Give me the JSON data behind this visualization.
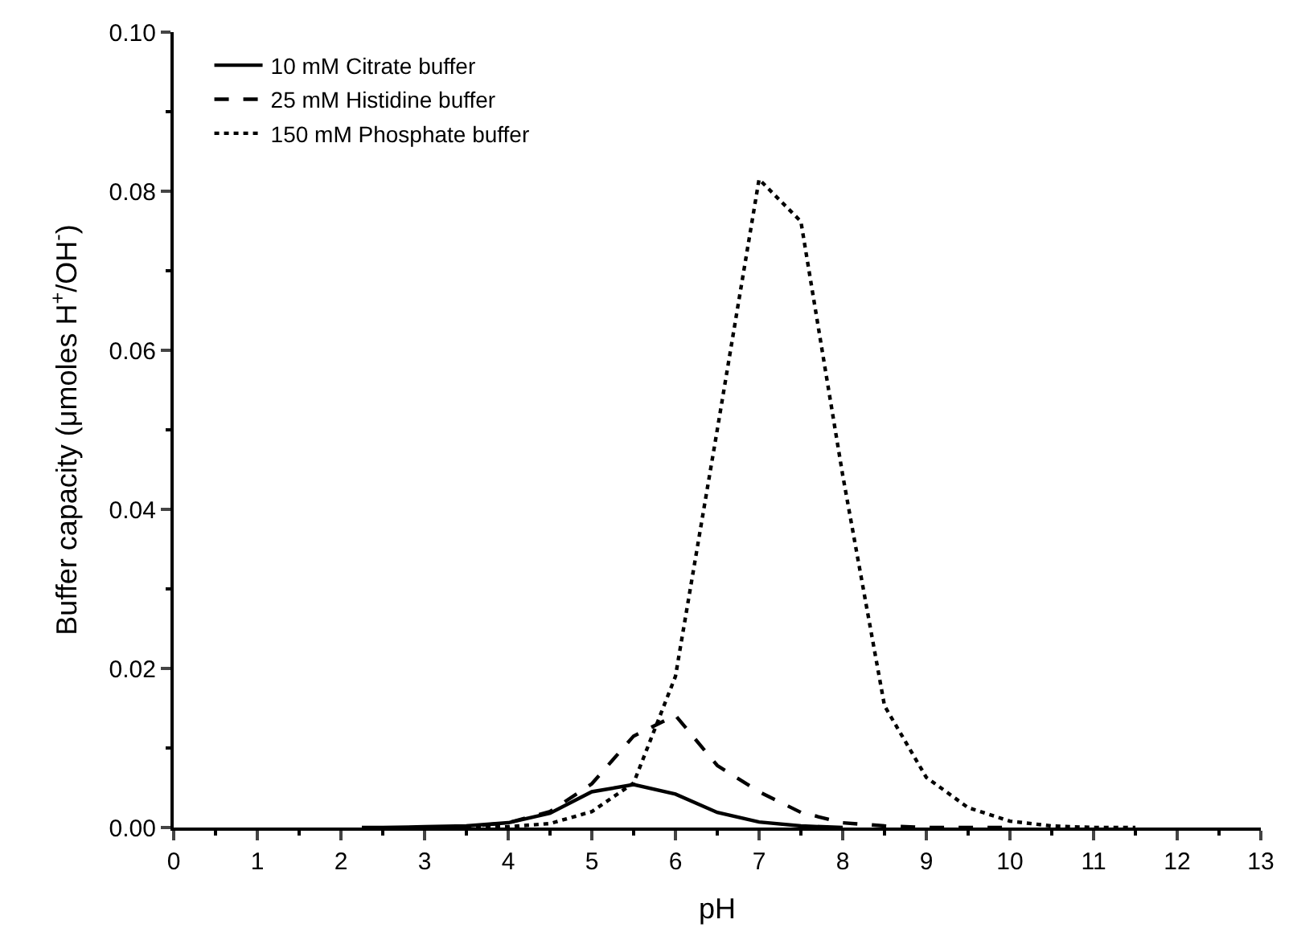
{
  "chart_data": {
    "type": "line",
    "xlabel": "pH",
    "ylabel": "Buffer capacity (μmoles H$^{+}$/OH$^{-}$)",
    "xlim": [
      0,
      13
    ],
    "ylim": [
      0,
      0.1
    ],
    "xticks": [
      0,
      {
        "value": 0.5,
        "label": null
      },
      1,
      {
        "value": 1.5,
        "label": null
      },
      2,
      {
        "value": 2.5,
        "label": null
      },
      3,
      {
        "value": 3.5,
        "label": null
      },
      4,
      {
        "value": 4.5,
        "label": null
      },
      5,
      {
        "value": 5.5,
        "label": null
      },
      6,
      {
        "value": 6.5,
        "label": null
      },
      7,
      {
        "value": 7.5,
        "label": null
      },
      8,
      {
        "value": 8.5,
        "label": null
      },
      9,
      {
        "value": 9.5,
        "label": null
      },
      10,
      {
        "value": 10.5,
        "label": null
      },
      11,
      {
        "value": 11.5,
        "label": null
      },
      12,
      {
        "value": 12.5,
        "label": null
      },
      13
    ],
    "yticks": [
      {
        "value": 0,
        "label": "0.00"
      },
      {
        "value": 0.01,
        "label": null
      },
      {
        "value": 0.02,
        "label": "0.02"
      },
      {
        "value": 0.03,
        "label": null
      },
      {
        "value": 0.04,
        "label": "0.04"
      },
      {
        "value": 0.05,
        "label": null
      },
      {
        "value": 0.06,
        "label": "0.06"
      },
      {
        "value": 0.07,
        "label": null
      },
      {
        "value": 0.08,
        "label": "0.08"
      },
      {
        "value": 0.09,
        "label": null
      },
      {
        "value": 0.1,
        "label": "0.10"
      }
    ],
    "grid": false,
    "legend": "top left",
    "marker": "none",
    "series": [
      {
        "name": "10 mM Citrate buffer",
        "color": "#000000",
        "line_style": "solid",
        "x": [
          2.25,
          2.5,
          3,
          3.5,
          4,
          4.5,
          5,
          5.5,
          6,
          6.5,
          7,
          7.5,
          8
        ],
        "values": [
          0,
          0,
          0.0001,
          0.0002,
          0.0006,
          0.0018,
          0.0045,
          0.0054,
          0.0042,
          0.0019,
          0.0007,
          0.0002,
          0
        ]
      },
      {
        "name": "25 mM Histidine buffer",
        "color": "#000000",
        "line_style": "dashed",
        "x": [
          3,
          3.5,
          4,
          4.5,
          5,
          5.5,
          6,
          6.5,
          7,
          7.5,
          8,
          8.5,
          9,
          9.5,
          10
        ],
        "values": [
          0,
          0.0001,
          0.0006,
          0.002,
          0.0055,
          0.0115,
          0.0141,
          0.0078,
          0.0045,
          0.0019,
          0.0006,
          0.0002,
          0,
          0,
          0
        ]
      },
      {
        "name": "150 mM Phosphate buffer",
        "color": "#000000",
        "line_style": "dotted",
        "x": [
          3.5,
          4,
          4.5,
          5,
          5.5,
          6,
          6.5,
          7,
          7.5,
          8,
          8.5,
          9,
          9.5,
          10,
          10.5,
          11,
          11.5
        ],
        "values": [
          0,
          0.0001,
          0.0005,
          0.002,
          0.0056,
          0.019,
          0.05,
          0.0815,
          0.0762,
          0.0443,
          0.0153,
          0.0063,
          0.0025,
          0.0008,
          0.0002,
          0,
          0
        ]
      }
    ]
  }
}
